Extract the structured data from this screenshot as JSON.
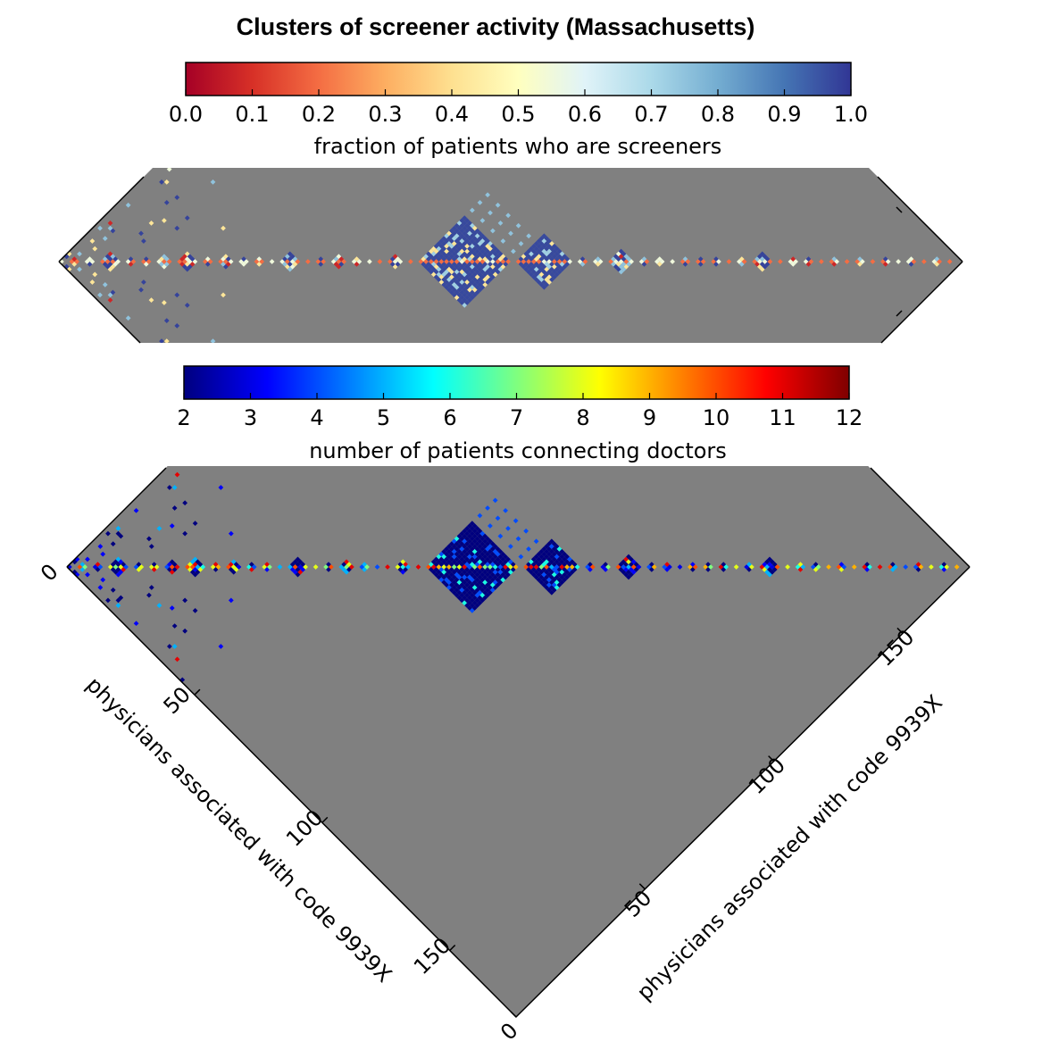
{
  "chart_data": {
    "type": "heatmap",
    "title": "Clusters of screener activity (Massachusetts)",
    "n_physicians": 176,
    "panels": [
      {
        "name": "screener-fraction",
        "colorbar_label": "fraction of patients who are screeners",
        "colorbar_colormap": "RdYlBu",
        "colorbar_stops": [
          "#a50026",
          "#d73027",
          "#f46d43",
          "#fdae61",
          "#fee090",
          "#ffffbf",
          "#e0f3f8",
          "#abd9e9",
          "#74add1",
          "#4575b4",
          "#313695"
        ],
        "colorbar_ticks": [
          "0.0",
          "0.1",
          "0.2",
          "0.3",
          "0.4",
          "0.5",
          "0.6",
          "0.7",
          "0.8",
          "0.9",
          "1.0"
        ],
        "value_range": [
          0.0,
          1.0
        ]
      },
      {
        "name": "patient-count",
        "colorbar_label": "number of patients connecting doctors",
        "colorbar_colormap": "jet",
        "colorbar_stops": [
          "#00007f",
          "#0000ff",
          "#007fff",
          "#00ffff",
          "#7fff7f",
          "#ffff00",
          "#ff7f00",
          "#ff0000",
          "#7f0000"
        ],
        "colorbar_ticks": [
          "2",
          "3",
          "4",
          "5",
          "6",
          "7",
          "8",
          "9",
          "10",
          "11",
          "12"
        ],
        "value_range": [
          2,
          12
        ]
      }
    ],
    "clusters": [
      {
        "start": 0,
        "size": 1
      },
      {
        "start": 2,
        "size": 2
      },
      {
        "start": 5,
        "size": 2
      },
      {
        "start": 8,
        "size": 4
      },
      {
        "start": 13,
        "size": 2
      },
      {
        "start": 16,
        "size": 2
      },
      {
        "start": 19,
        "size": 3
      },
      {
        "start": 23,
        "size": 4
      },
      {
        "start": 28,
        "size": 2
      },
      {
        "start": 31,
        "size": 3
      },
      {
        "start": 35,
        "size": 2
      },
      {
        "start": 38,
        "size": 2
      },
      {
        "start": 41,
        "size": 1
      },
      {
        "start": 43,
        "size": 4
      },
      {
        "start": 48,
        "size": 1
      },
      {
        "start": 50,
        "size": 2
      },
      {
        "start": 53,
        "size": 3
      },
      {
        "start": 57,
        "size": 2
      },
      {
        "start": 60,
        "size": 1
      },
      {
        "start": 62,
        "size": 1
      },
      {
        "start": 64,
        "size": 3
      },
      {
        "start": 68,
        "size": 1
      },
      {
        "start": 70,
        "size": 18
      },
      {
        "start": 89,
        "size": 11
      },
      {
        "start": 101,
        "size": 2
      },
      {
        "start": 104,
        "size": 2
      },
      {
        "start": 107,
        "size": 5
      },
      {
        "start": 113,
        "size": 2
      },
      {
        "start": 116,
        "size": 2
      },
      {
        "start": 119,
        "size": 1
      },
      {
        "start": 121,
        "size": 2
      },
      {
        "start": 124,
        "size": 2
      },
      {
        "start": 127,
        "size": 2
      },
      {
        "start": 130,
        "size": 1
      },
      {
        "start": 132,
        "size": 2
      },
      {
        "start": 135,
        "size": 4
      },
      {
        "start": 140,
        "size": 1
      },
      {
        "start": 142,
        "size": 2
      },
      {
        "start": 145,
        "size": 2
      },
      {
        "start": 148,
        "size": 1
      },
      {
        "start": 150,
        "size": 2
      },
      {
        "start": 153,
        "size": 1
      },
      {
        "start": 155,
        "size": 2
      },
      {
        "start": 158,
        "size": 1
      },
      {
        "start": 160,
        "size": 2
      },
      {
        "start": 163,
        "size": 1
      },
      {
        "start": 165,
        "size": 2
      },
      {
        "start": 168,
        "size": 1
      },
      {
        "start": 170,
        "size": 2
      },
      {
        "start": 173,
        "size": 1
      }
    ],
    "left_axis": {
      "label": "physicians associated with code 9939X",
      "ticks": [
        "0",
        "50",
        "100",
        "150"
      ]
    },
    "right_axis": {
      "label": "physicians associated with code 9939X",
      "ticks": [
        "0",
        "50",
        "100",
        "150"
      ]
    },
    "background_color": "#808080"
  }
}
